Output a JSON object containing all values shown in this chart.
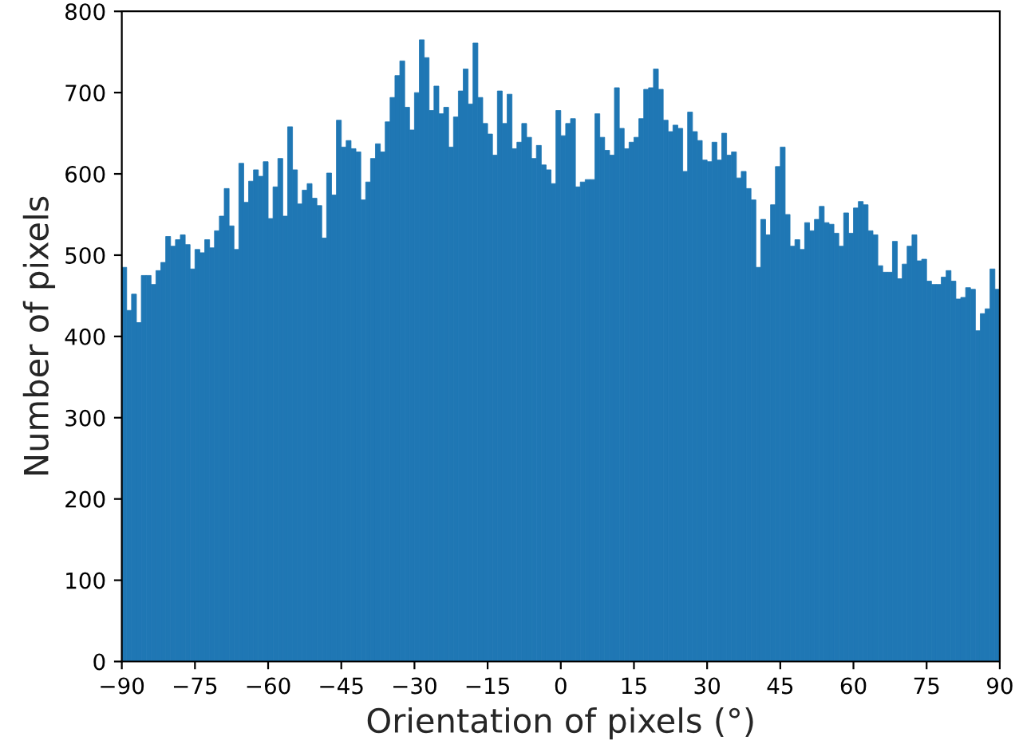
{
  "chart_data": {
    "type": "histogram",
    "xlabel": "Orientation of pixels (°)",
    "ylabel": "Number of pixels",
    "color": "#1f77b4",
    "bins": [
      -90,
      -89,
      -88,
      -87,
      -86,
      -85,
      -84,
      -83,
      -82,
      -81,
      -80,
      -79,
      -78,
      -77,
      -76,
      -75,
      -74,
      -73,
      -72,
      -71,
      -70,
      -69,
      -68,
      -67,
      -66,
      -65,
      -64,
      -63,
      -62,
      -61,
      -60,
      -59,
      -58,
      -57,
      -56,
      -55,
      -54,
      -53,
      -52,
      -51,
      -50,
      -49,
      -48,
      -47,
      -46,
      -45,
      -44,
      -43,
      -42,
      -41,
      -40,
      -39,
      -38,
      -37,
      -36,
      -35,
      -34,
      -33,
      -32,
      -31,
      -30,
      -29,
      -28,
      -27,
      -26,
      -25,
      -24,
      -23,
      -22,
      -21,
      -20,
      -19,
      -18,
      -17,
      -16,
      -15,
      -14,
      -13,
      -12,
      -11,
      -10,
      -9,
      -8,
      -7,
      -6,
      -5,
      -4,
      -3,
      -2,
      -1,
      0,
      1,
      2,
      3,
      4,
      5,
      6,
      7,
      8,
      9,
      10,
      11,
      12,
      13,
      14,
      15,
      16,
      17,
      18,
      19,
      20,
      21,
      22,
      23,
      24,
      25,
      26,
      27,
      28,
      29,
      30,
      31,
      32,
      33,
      34,
      35,
      36,
      37,
      38,
      39,
      40,
      41,
      42,
      43,
      44,
      45,
      46,
      47,
      48,
      49,
      50,
      51,
      52,
      53,
      54,
      55,
      56,
      57,
      58,
      59,
      60,
      61,
      62,
      63,
      64,
      65,
      66,
      67,
      68,
      69,
      70,
      71,
      72,
      73,
      74,
      75,
      76,
      77,
      78,
      79,
      80,
      81,
      82,
      83,
      84,
      85,
      86,
      87,
      88,
      89,
      90
    ],
    "values": [
      485,
      432,
      452,
      417,
      475,
      475,
      464,
      481,
      491,
      523,
      511,
      519,
      525,
      513,
      483,
      507,
      503,
      519,
      509,
      530,
      548,
      582,
      536,
      507,
      613,
      565,
      591,
      605,
      597,
      615,
      545,
      584,
      619,
      548,
      658,
      605,
      563,
      580,
      588,
      570,
      561,
      521,
      601,
      574,
      666,
      633,
      641,
      631,
      627,
      568,
      590,
      619,
      637,
      627,
      664,
      694,
      721,
      739,
      682,
      654,
      700,
      765,
      743,
      678,
      708,
      674,
      682,
      633,
      670,
      702,
      729,
      686,
      761,
      694,
      662,
      649,
      623,
      702,
      662,
      698,
      631,
      639,
      662,
      645,
      619,
      635,
      611,
      605,
      588,
      678,
      647,
      662,
      668,
      584,
      590,
      593,
      593,
      674,
      645,
      629,
      623,
      706,
      656,
      631,
      639,
      645,
      668,
      704,
      706,
      729,
      704,
      666,
      652,
      660,
      656,
      603,
      676,
      652,
      641,
      617,
      615,
      639,
      617,
      650,
      623,
      627,
      595,
      603,
      582,
      568,
      485,
      544,
      525,
      562,
      609,
      633,
      550,
      511,
      519,
      507,
      540,
      530,
      544,
      560,
      540,
      538,
      527,
      511,
      552,
      527,
      558,
      566,
      562,
      530,
      525,
      487,
      479,
      479,
      517,
      471,
      489,
      511,
      525,
      493,
      495,
      468,
      464,
      464,
      473,
      481,
      468,
      446,
      448,
      460,
      458,
      407,
      428,
      434,
      483,
      458
    ],
    "xlim": [
      -90,
      90
    ],
    "ylim": [
      0,
      800
    ],
    "xticks": [
      {
        "value": -90,
        "label": "−90"
      },
      {
        "value": -75,
        "label": "−75"
      },
      {
        "value": -60,
        "label": "−60"
      },
      {
        "value": -45,
        "label": "−45"
      },
      {
        "value": -30,
        "label": "−30"
      },
      {
        "value": -15,
        "label": "−15"
      },
      0,
      15,
      30,
      45,
      60,
      75,
      90
    ],
    "yticks": [
      0,
      100,
      200,
      300,
      400,
      500,
      600,
      700,
      800
    ],
    "grid": false
  }
}
